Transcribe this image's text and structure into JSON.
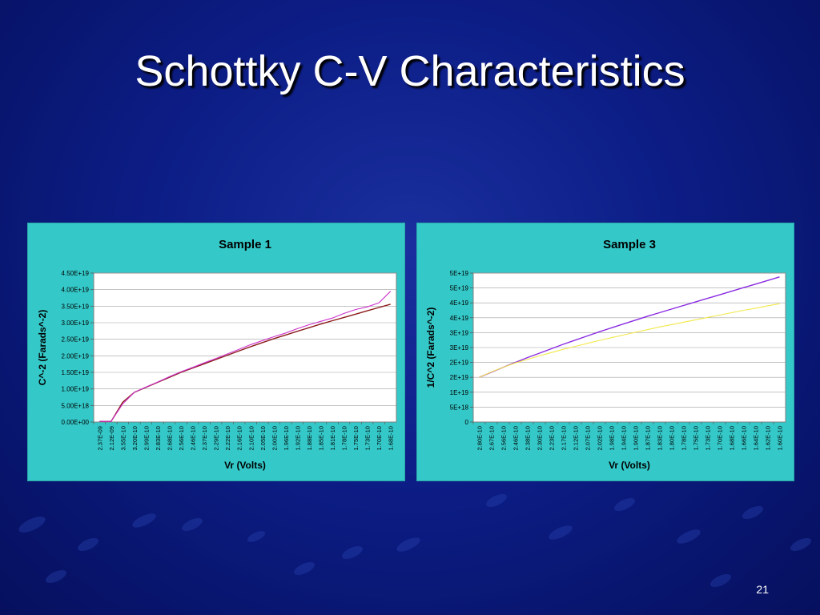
{
  "slide": {
    "title": "Schottky C-V Characteristics",
    "page_number": "21"
  },
  "colors": {
    "background": "#0c1d86",
    "panel": "#35c8c8",
    "series_fit": "#8b1a1a",
    "series_measured": "#cc33cc",
    "series_purple": "#8a2be2",
    "series_yellow": "#f2e84a"
  },
  "chart_data": [
    {
      "type": "line",
      "title": "Sample 1",
      "xlabel": "Vr (Volts)",
      "ylabel": "C^-2 (Farads^-2)",
      "ylim": [
        0,
        4.5e+19
      ],
      "yticks": [
        "0.00E+00",
        "5.00E+18",
        "1.00E+19",
        "1.50E+19",
        "2.00E+19",
        "2.50E+19",
        "3.00E+19",
        "3.50E+19",
        "4.00E+19",
        "4.50E+19"
      ],
      "x_tick_labels": [
        "2.37E-09",
        "2.12E-09",
        "3.55E-10",
        "3.20E-10",
        "2.99E-10",
        "2.83E-10",
        "2.68E-10",
        "2.56E-10",
        "2.46E-10",
        "2.37E-10",
        "2.29E-10",
        "2.22E-10",
        "2.16E-10",
        "2.10E-10",
        "2.05E-10",
        "2.00E-10",
        "1.96E-10",
        "1.92E-10",
        "1.88E-10",
        "1.85E-10",
        "1.81E-10",
        "1.78E-10",
        "1.75E-10",
        "1.73E-10",
        "1.70E-10",
        "1.68E-10"
      ],
      "grid": true,
      "series": [
        {
          "color": "#8b1a1a",
          "values": [
            2e+17,
            2e+17,
            6e+18,
            9e+18,
            1.05e+19,
            1.2e+19,
            1.35e+19,
            1.5e+19,
            1.63e+19,
            1.76e+19,
            1.89e+19,
            2.02e+19,
            2.15e+19,
            2.28e+19,
            2.4e+19,
            2.52e+19,
            2.63e+19,
            2.74e+19,
            2.85e+19,
            2.96e+19,
            3.06e+19,
            3.16e+19,
            3.26e+19,
            3.36e+19,
            3.46e+19,
            3.56e+19
          ]
        },
        {
          "color": "#cc33cc",
          "values": [
            2e+17,
            2e+17,
            5.5e+18,
            9e+18,
            1.06e+19,
            1.21e+19,
            1.37e+19,
            1.52e+19,
            1.65e+19,
            1.79e+19,
            1.92e+19,
            2.06e+19,
            2.2e+19,
            2.34e+19,
            2.46e+19,
            2.58e+19,
            2.69e+19,
            2.82e+19,
            2.94e+19,
            3.04e+19,
            3.14e+19,
            3.28e+19,
            3.4e+19,
            3.48e+19,
            3.6e+19,
            3.95e+19
          ]
        }
      ]
    },
    {
      "type": "line",
      "title": "Sample 3",
      "xlabel": "Vr (Volts)",
      "ylabel": "1/C^2 (Farads^-2)",
      "ylim": [
        0,
        5e+19
      ],
      "yticks": [
        "0",
        "5E+18",
        "1E+19",
        "2E+19",
        "2E+19",
        "3E+19",
        "3E+19",
        "4E+19",
        "4E+19",
        "5E+19",
        "5E+19"
      ],
      "x_tick_labels": [
        "2.80E-10",
        "2.67E-10",
        "2.56E-10",
        "2.46E-10",
        "2.38E-10",
        "2.30E-10",
        "2.23E-10",
        "2.17E-10",
        "2.12E-10",
        "2.07E-10",
        "2.02E-10",
        "1.98E-10",
        "1.94E-10",
        "1.90E-10",
        "1.87E-10",
        "1.83E-10",
        "1.80E-10",
        "1.78E-10",
        "1.75E-10",
        "1.73E-10",
        "1.70E-10",
        "1.68E-10",
        "1.66E-10",
        "1.64E-10",
        "1.62E-10",
        "1.60E-10"
      ],
      "grid": true,
      "series": [
        {
          "color": "#8a2be2",
          "values": [
            1.5e+19,
            1.67e+19,
            1.84e+19,
            2e+19,
            2.16e+19,
            2.31e+19,
            2.46e+19,
            2.61e+19,
            2.75e+19,
            2.89e+19,
            3.03e+19,
            3.16e+19,
            3.29e+19,
            3.42e+19,
            3.55e+19,
            3.67e+19,
            3.79e+19,
            3.91e+19,
            4.03e+19,
            4.15e+19,
            4.27e+19,
            4.39e+19,
            4.51e+19,
            4.63e+19,
            4.75e+19,
            4.87e+19
          ]
        },
        {
          "color": "#f2e84a",
          "values": [
            1.5e+19,
            1.68e+19,
            1.84e+19,
            1.98e+19,
            2.1e+19,
            2.22e+19,
            2.33e+19,
            2.44e+19,
            2.54e+19,
            2.64e+19,
            2.74e+19,
            2.83e+19,
            2.92e+19,
            3.01e+19,
            3.1e+19,
            3.19e+19,
            3.27e+19,
            3.35e+19,
            3.43e+19,
            3.51e+19,
            3.59e+19,
            3.67e+19,
            3.75e+19,
            3.82e+19,
            3.9e+19,
            3.97e+19
          ]
        }
      ]
    }
  ]
}
